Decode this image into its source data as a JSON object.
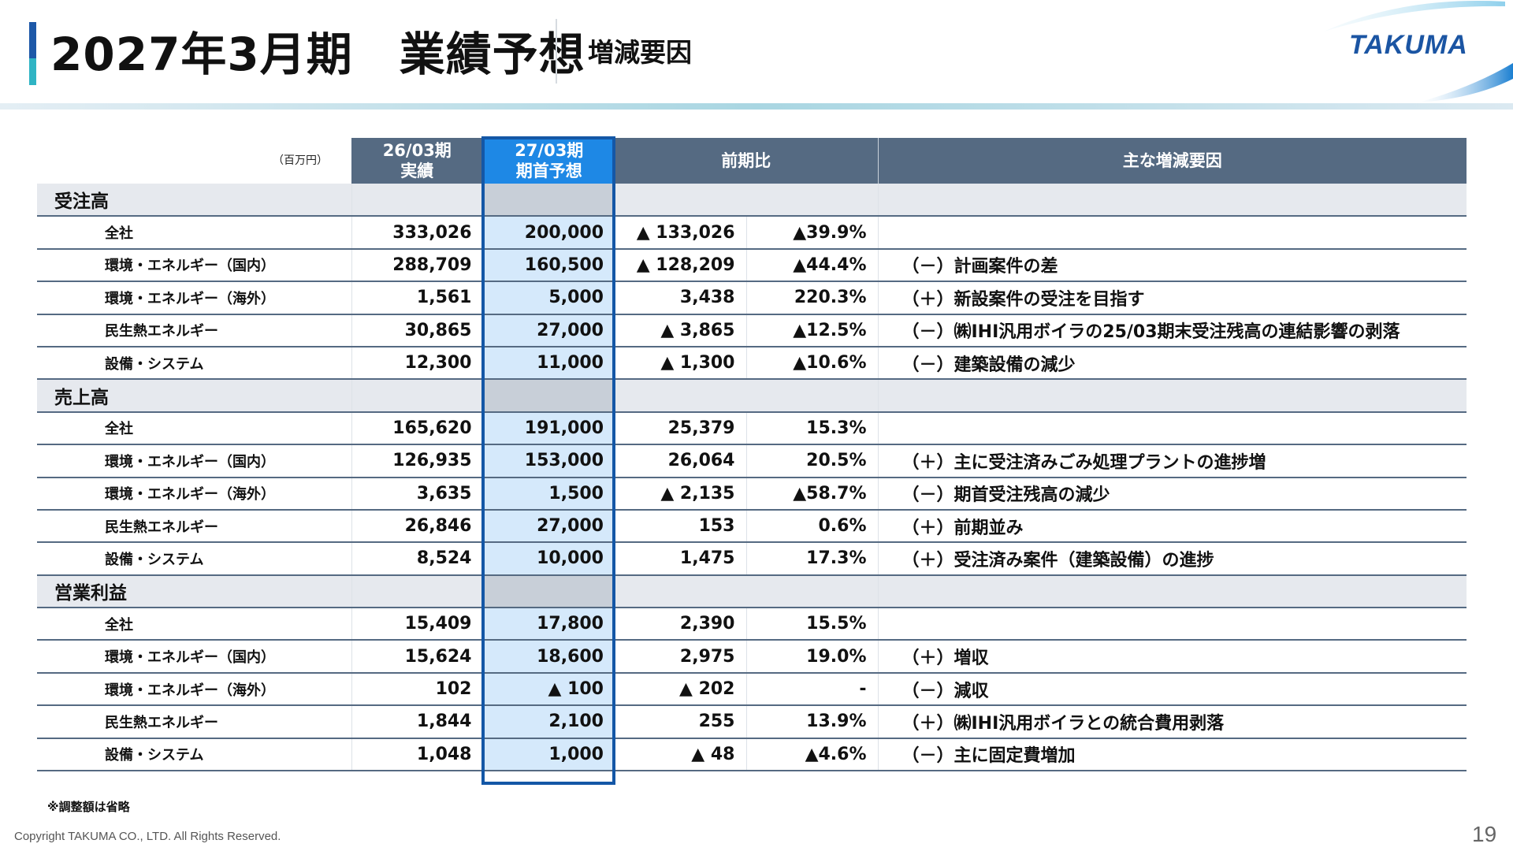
{
  "header": {
    "title": "2027年3月期　業績予想",
    "subtitle": "増減要因",
    "logo_text": "TAKUMA",
    "colors": {
      "accent_top": "#1d58a8",
      "accent_bottom": "#2fb4c4",
      "table_header": "#556a82",
      "highlight": "#1e88e5",
      "highlight_border": "#1457a6"
    }
  },
  "table": {
    "unit_label": "（百万円）",
    "col_fy26_line1": "26/03期",
    "col_fy26_line2": "実績",
    "col_fy27_line1": "27/03期",
    "col_fy27_line2": "期首予想",
    "col_yoy": "前期比",
    "col_factors": "主な増減要因",
    "sections": [
      {
        "name": "受注高",
        "rows": [
          {
            "label": "全社",
            "actual": "333,026",
            "forecast": "200,000",
            "diff": "▲ 133,026",
            "pct": "▲39.9%",
            "factor": ""
          },
          {
            "label": "環境・エネルギー（国内）",
            "actual": "288,709",
            "forecast": "160,500",
            "diff": "▲ 128,209",
            "pct": "▲44.4%",
            "factor": "（－）計画案件の差"
          },
          {
            "label": "環境・エネルギー（海外）",
            "actual": "1,561",
            "forecast": "5,000",
            "diff": "3,438",
            "pct": "220.3%",
            "factor": "（＋）新設案件の受注を目指す"
          },
          {
            "label": "民生熱エネルギー",
            "actual": "30,865",
            "forecast": "27,000",
            "diff": "▲ 3,865",
            "pct": "▲12.5%",
            "factor": "（－）㈱IHI汎用ボイラの25/03期末受注残高の連結影響の剥落"
          },
          {
            "label": "設備・システム",
            "actual": "12,300",
            "forecast": "11,000",
            "diff": "▲ 1,300",
            "pct": "▲10.6%",
            "factor": "（－）建築設備の減少"
          }
        ]
      },
      {
        "name": "売上高",
        "rows": [
          {
            "label": "全社",
            "actual": "165,620",
            "forecast": "191,000",
            "diff": "25,379",
            "pct": "15.3%",
            "factor": ""
          },
          {
            "label": "環境・エネルギー（国内）",
            "actual": "126,935",
            "forecast": "153,000",
            "diff": "26,064",
            "pct": "20.5%",
            "factor": "（＋）主に受注済みごみ処理プラントの進捗増"
          },
          {
            "label": "環境・エネルギー（海外）",
            "actual": "3,635",
            "forecast": "1,500",
            "diff": "▲ 2,135",
            "pct": "▲58.7%",
            "factor": "（－）期首受注残高の減少"
          },
          {
            "label": "民生熱エネルギー",
            "actual": "26,846",
            "forecast": "27,000",
            "diff": "153",
            "pct": "0.6%",
            "factor": "（＋）前期並み"
          },
          {
            "label": "設備・システム",
            "actual": "8,524",
            "forecast": "10,000",
            "diff": "1,475",
            "pct": "17.3%",
            "factor": "（＋）受注済み案件（建築設備）の進捗"
          }
        ]
      },
      {
        "name": "営業利益",
        "rows": [
          {
            "label": "全社",
            "actual": "15,409",
            "forecast": "17,800",
            "diff": "2,390",
            "pct": "15.5%",
            "factor": ""
          },
          {
            "label": "環境・エネルギー（国内）",
            "actual": "15,624",
            "forecast": "18,600",
            "diff": "2,975",
            "pct": "19.0%",
            "factor": "（＋）増収"
          },
          {
            "label": "環境・エネルギー（海外）",
            "actual": "102",
            "forecast": "▲ 100",
            "diff": "▲ 202",
            "pct": "-",
            "factor": "（－）減収"
          },
          {
            "label": "民生熱エネルギー",
            "actual": "1,844",
            "forecast": "2,100",
            "diff": "255",
            "pct": "13.9%",
            "factor": "（＋）㈱IHI汎用ボイラとの統合費用剥落"
          },
          {
            "label": "設備・システム",
            "actual": "1,048",
            "forecast": "1,000",
            "diff": "▲ 48",
            "pct": "▲4.6%",
            "factor": "（－）主に固定費増加"
          }
        ]
      }
    ]
  },
  "footnote": "※調整額は省略",
  "copyright": "Copyright  TAKUMA CO., LTD.  All Rights Reserved.",
  "page_number": "19"
}
